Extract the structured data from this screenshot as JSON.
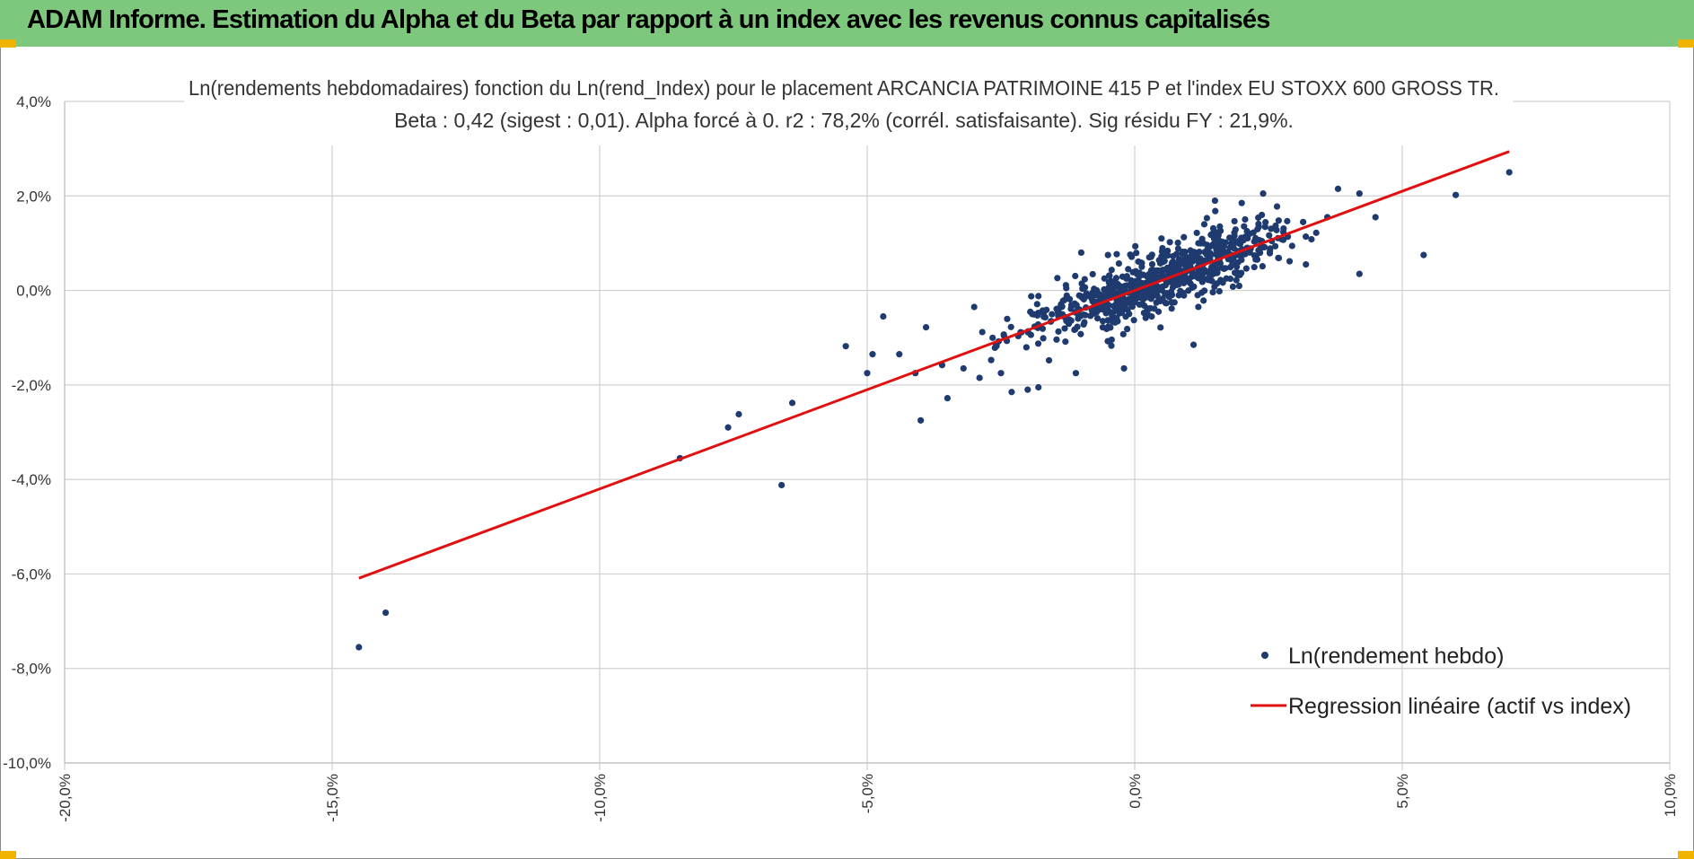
{
  "banner": {
    "title": "ADAM Informe. Estimation du Alpha et du Beta par rapport à un index avec les revenus connus capitalisés"
  },
  "colors": {
    "banner_bg": "#7ec87e",
    "points": "#1f3a6e",
    "regression": "#e01010",
    "grid": "#d0d0d0",
    "corner": "#f0b400"
  },
  "chart_data": {
    "type": "scatter",
    "title_line1": "Ln(rendements hebdomadaires) fonction du Ln(rend_Index) pour le placement ARCANCIA PATRIMOINE 415 P et l'index EU STOXX 600 GROSS TR.",
    "title_line2": "Beta : 0,42 (sigest : 0,01). Alpha forcé à 0. r2 : 78,2% (corrél. satisfaisante). Sig résidu FY : 21,9%.",
    "xlabel": "",
    "ylabel": "",
    "xlim": [
      -20,
      10
    ],
    "ylim": [
      -10,
      4
    ],
    "x_ticks": [
      -20,
      -15,
      -10,
      -5,
      0,
      5,
      10
    ],
    "x_tick_labels": [
      "-20,0%",
      "-15,0%",
      "-10,0%",
      "-5,0%",
      "0,0%",
      "5,0%",
      "10,0%"
    ],
    "y_ticks": [
      4,
      2,
      0,
      -2,
      -4,
      -6,
      -8,
      -10
    ],
    "y_tick_labels": [
      "4,0%",
      "2,0%",
      "0,0%",
      "-2,0%",
      "-4,0%",
      "-6,0%",
      "-8,0%",
      "-10,0%"
    ],
    "grid": true,
    "legend_position": "bottom-right",
    "series": [
      {
        "name": "Ln(rendement hebdo)",
        "kind": "scatter",
        "explicit_points": [
          [
            -14.5,
            -7.55
          ],
          [
            -14.0,
            -6.82
          ],
          [
            -8.5,
            -3.55
          ],
          [
            -7.6,
            -2.9
          ],
          [
            -7.4,
            -2.62
          ],
          [
            -6.6,
            -4.12
          ],
          [
            -6.4,
            -2.38
          ],
          [
            -5.4,
            -1.18
          ],
          [
            -5.0,
            -1.75
          ],
          [
            -4.9,
            -1.35
          ],
          [
            -4.7,
            -0.55
          ],
          [
            -4.4,
            -1.35
          ],
          [
            -4.1,
            -1.75
          ],
          [
            -4.0,
            -2.75
          ],
          [
            -3.9,
            -0.78
          ],
          [
            -3.6,
            -1.58
          ],
          [
            -3.5,
            -2.28
          ],
          [
            -3.2,
            -1.65
          ],
          [
            -3.0,
            -0.35
          ],
          [
            -2.9,
            -1.85
          ],
          [
            -2.5,
            -1.75
          ],
          [
            -2.3,
            -2.15
          ],
          [
            -2.0,
            -2.1
          ],
          [
            -1.8,
            -2.05
          ],
          [
            -1.8,
            -0.12
          ],
          [
            -1.1,
            -1.75
          ],
          [
            -1.0,
            0.8
          ],
          [
            -0.5,
            0.75
          ],
          [
            -0.2,
            -1.65
          ],
          [
            1.1,
            -1.15
          ],
          [
            1.5,
            1.9
          ],
          [
            2.4,
            2.05
          ],
          [
            3.8,
            2.15
          ],
          [
            4.2,
            2.05
          ],
          [
            3.6,
            1.55
          ],
          [
            4.5,
            1.55
          ],
          [
            4.2,
            0.35
          ],
          [
            5.4,
            0.75
          ],
          [
            6.0,
            2.02
          ],
          [
            7.0,
            2.5
          ],
          [
            3.2,
            0.55
          ],
          [
            2.0,
            1.85
          ],
          [
            1.3,
            1.4
          ],
          [
            0.5,
            1.1
          ]
        ],
        "generated_cluster": {
          "count": 780,
          "x_mean": 0.45,
          "x_sd": 1.15,
          "slope": 0.42,
          "residual_sd": 0.32,
          "x_range": [
            -3.3,
            3.4
          ],
          "seed": 20231
        }
      },
      {
        "name": "Regression linéaire (actif vs index)",
        "kind": "line",
        "x": [
          -14.5,
          7.0
        ],
        "y": [
          -6.09,
          2.94
        ]
      }
    ]
  }
}
